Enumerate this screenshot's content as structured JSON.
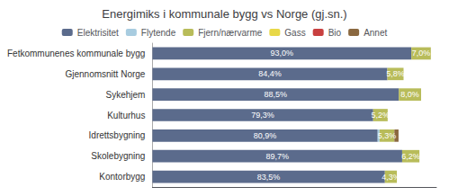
{
  "chart_data": {
    "type": "bar",
    "title": "Energimiks i kommunale bygg vs Norge (gj.sn.)",
    "orientation": "horizontal",
    "stacked": true,
    "data_labels": true,
    "legend": "top",
    "grid": false,
    "tick_labels": "y",
    "categories": [
      "Kontorbygg",
      "Skolebygning",
      "Idrettsbygning",
      "Kulturhus",
      "Sykehjem",
      "Gjennomsnitt Norge",
      "Fetkommunenes kommunale bygg"
    ],
    "xlim": [
      0,
      102
    ],
    "xticks": [],
    "series": [
      {
        "name": "Elektrisitet",
        "color": "#5b6b8c",
        "values": [
          83.5,
          89.7,
          80.9,
          79.3,
          88.5,
          84.4,
          93.0
        ],
        "value_labels": [
          "83,5%",
          "89,7%",
          "80,9%",
          "79,3%",
          "88,5%",
          "84,4%",
          "93,0%"
        ]
      },
      {
        "name": "Flytende",
        "color": "#a8cce0",
        "values": [
          0.0,
          0.0,
          0.7,
          0.0,
          0.0,
          0.0,
          0.0
        ],
        "value_labels": [
          null,
          null,
          null,
          null,
          null,
          null,
          null
        ]
      },
      {
        "name": "Fjern/nærvarme",
        "color": "#b8bc5a",
        "values": [
          4.3,
          6.2,
          5.3,
          5.2,
          8.0,
          5.8,
          7.0
        ],
        "value_labels": [
          "4,3%",
          "6,2%",
          "5,3%",
          "5,2%",
          "8,0%",
          "5,8%",
          "7,0%"
        ]
      },
      {
        "name": "Gass",
        "color": "#e8d848",
        "values": [
          0.0,
          0.0,
          0.0,
          0.0,
          0.0,
          0.0,
          0.0
        ],
        "value_labels": [
          null,
          null,
          null,
          null,
          null,
          null,
          null
        ]
      },
      {
        "name": "Bio",
        "color": "#c84040",
        "values": [
          0.0,
          0.0,
          0.0,
          0.0,
          0.0,
          0.0,
          0.0
        ],
        "value_labels": [
          null,
          null,
          null,
          null,
          null,
          null,
          null
        ]
      },
      {
        "name": "Annet",
        "color": "#8a6840",
        "values": [
          0.0,
          0.0,
          1.5,
          0.0,
          0.0,
          0.0,
          0.0
        ],
        "value_labels": [
          null,
          null,
          null,
          null,
          null,
          null,
          null
        ]
      }
    ]
  }
}
